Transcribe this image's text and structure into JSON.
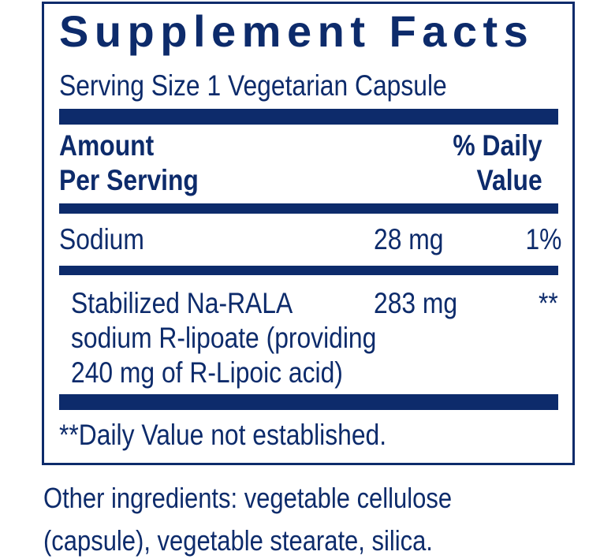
{
  "label": {
    "title": "Supplement Facts",
    "serving_size": "Serving Size 1 Vegetarian Capsule",
    "header": {
      "amount_line1": "Amount",
      "amount_line2": "Per Serving",
      "dv_line1": "% Daily",
      "dv_line2": "Value"
    },
    "rows": [
      {
        "name": "Sodium",
        "amount": "28 mg",
        "dv": "1%"
      },
      {
        "name_lines": [
          "Stabilized Na-RALA",
          "sodium R-lipoate (providing",
          "240 mg of R-Lipoic acid)"
        ],
        "amount": "283 mg",
        "dv": "**"
      }
    ],
    "footnote": "**Daily Value not established."
  },
  "other_ingredients": {
    "line1": "Other ingredients: vegetable cellulose",
    "line2": "(capsule), vegetable stearate, silica."
  },
  "colors": {
    "label_blue": "#0d2b6b"
  }
}
